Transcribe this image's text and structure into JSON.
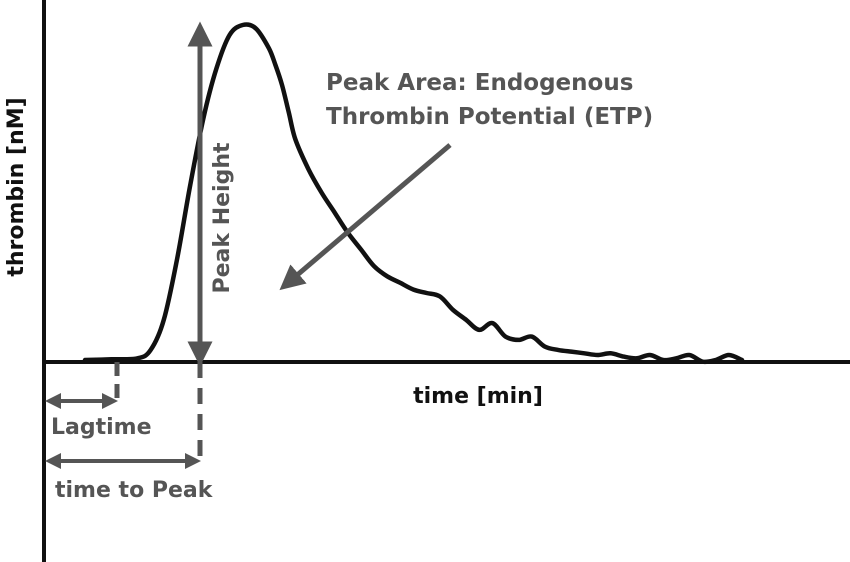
{
  "chart_data": {
    "type": "line",
    "title": "",
    "xlabel": "time [min]",
    "ylabel": "thrombin [nM]",
    "grid": false,
    "legend": "none",
    "series": [
      {
        "x": [
          0,
          4,
          8,
          10,
          12,
          14,
          16,
          18,
          20,
          22,
          24,
          26,
          28,
          29,
          30,
          31,
          32,
          34,
          36,
          38,
          40,
          42,
          44,
          46,
          48,
          50,
          52,
          54,
          56,
          58,
          60,
          62,
          64,
          66,
          68,
          70,
          72,
          74,
          76,
          78,
          80,
          82,
          84,
          86,
          88,
          90,
          92,
          94,
          96,
          98,
          100
        ],
        "y": [
          0,
          0.2,
          0.5,
          3,
          12,
          30,
          52,
          72,
          87,
          97,
          100,
          99,
          93,
          88,
          82,
          74,
          66,
          57,
          50,
          44,
          38,
          33,
          28,
          25,
          23,
          21,
          20,
          19,
          15,
          12,
          9,
          11,
          7,
          6,
          7,
          4,
          3,
          2.5,
          2,
          1.5,
          2,
          1,
          0.5,
          1.5,
          0,
          0.5,
          1.5,
          -0.5,
          0,
          1.5,
          0
        ]
      }
    ]
  },
  "annotations": {
    "etp_label_line1": "Peak Area: Endogenous",
    "etp_label_line2": "Thrombin Potential (ETP)",
    "peak_height": "Peak Height",
    "lagtime": "Lagtime",
    "time_to_peak": "time to Peak"
  },
  "colors": {
    "curve": "#111111",
    "axes": "#111111",
    "annotation": "#555555"
  }
}
